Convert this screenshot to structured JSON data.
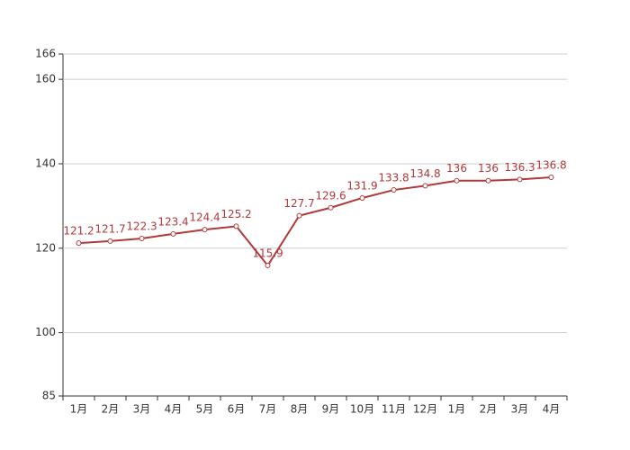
{
  "chart_data": {
    "type": "line",
    "categories": [
      "1月",
      "2月",
      "3月",
      "4月",
      "5月",
      "6月",
      "7月",
      "8月",
      "9月",
      "10月",
      "11月",
      "12月",
      "1月",
      "2月",
      "3月",
      "4月"
    ],
    "series": [
      {
        "color": "#b0393a",
        "values": [
          121.2,
          121.7,
          122.3,
          123.4,
          124.4,
          125.2,
          115.9,
          127.7,
          129.6,
          131.9,
          133.8,
          134.8,
          136,
          136,
          136.3,
          136.8
        ]
      }
    ],
    "ylim": [
      85,
      166
    ],
    "yticks": [
      85,
      100,
      120,
      140,
      160,
      166
    ],
    "grid": true
  }
}
